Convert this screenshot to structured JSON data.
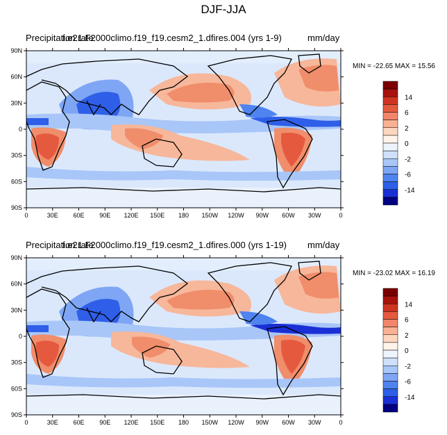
{
  "main_title": "DJF-JJA",
  "colors": {
    "levels_palette": [
      "#000080",
      "#1a2fd6",
      "#2f5fe8",
      "#4f83ef",
      "#7ea6f4",
      "#a8c6f8",
      "#cfe0fb",
      "#eef4fe",
      "#fff3ea",
      "#fdd6c0",
      "#f9b093",
      "#f3866a",
      "#e55a3f",
      "#cf3421",
      "#a8120c",
      "#7a0000"
    ],
    "land_outline": "#000000",
    "ocean_bg": "#eaf2fd"
  },
  "panels": [
    {
      "title_left": "Precipitation rate",
      "title_center": "f.e21.F2000climo.f19_f19.cesm2_1.dfires.004 (yrs 1-9)",
      "title_right": "mm/day",
      "min_max": "MIN = -22.65 MAX =  15.56"
    },
    {
      "title_left": "Precipitation rate",
      "title_center": "f.e21.F2000climo.f19_f19.cesm2_1.dfires.000 (yrs 1-19)",
      "title_right": "mm/day",
      "min_max": "MIN = -23.02 MAX =  16.19"
    }
  ],
  "lat_labels": [
    "90N",
    "60N",
    "30N",
    "0",
    "30S",
    "60S",
    "90S"
  ],
  "lon_labels": [
    "0",
    "30E",
    "60E",
    "90E",
    "120E",
    "150E",
    "180",
    "150W",
    "120W",
    "90W",
    "60W",
    "30W",
    "0"
  ],
  "colorbar_labels": [
    "14",
    "6",
    "2",
    "0",
    "-2",
    "-6",
    "-14"
  ]
}
